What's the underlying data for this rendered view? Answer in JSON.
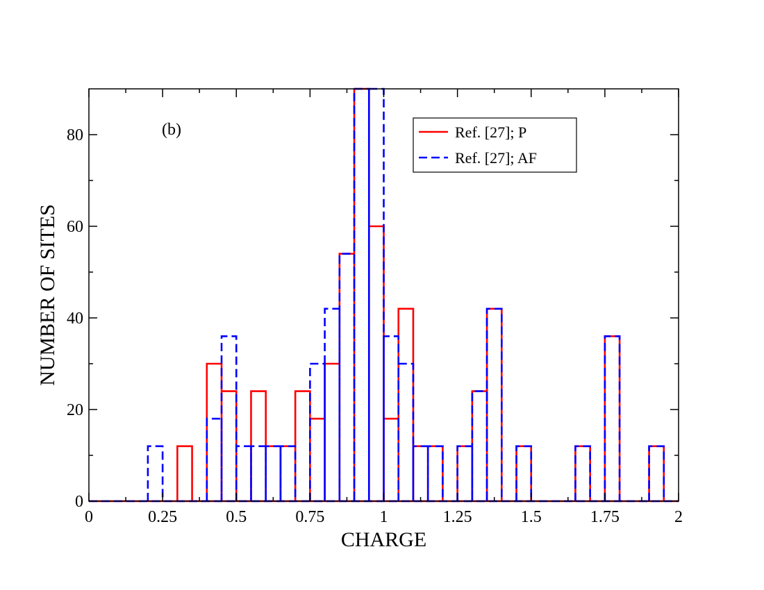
{
  "chart_data": {
    "type": "histogram",
    "title": "",
    "annotation": "(b)",
    "xlabel": "CHARGE",
    "ylabel": "NUMBER OF SITES",
    "xlim": [
      0,
      2
    ],
    "ylim": [
      0,
      90
    ],
    "bin_width": 0.05,
    "x_ticks": [
      0,
      0.25,
      0.5,
      0.75,
      1,
      1.25,
      1.5,
      1.75,
      2
    ],
    "x_tick_labels": [
      "0",
      "0.25",
      "0.5",
      "0.75",
      "1",
      "1.25",
      "1.5",
      "1.75",
      "2"
    ],
    "y_ticks": [
      0,
      20,
      40,
      60,
      80
    ],
    "y_tick_labels": [
      "0",
      "20",
      "40",
      "60",
      "80"
    ],
    "legend_position": "top-right",
    "series": [
      {
        "name": "Ref. [27]; P",
        "color": "#ff0000",
        "dash": "solid",
        "bin_starts": [
          0,
          0.05,
          0.1,
          0.15,
          0.2,
          0.25,
          0.3,
          0.35,
          0.4,
          0.45,
          0.5,
          0.55,
          0.6,
          0.65,
          0.7,
          0.75,
          0.8,
          0.85,
          0.9,
          0.95,
          1.0,
          1.05,
          1.1,
          1.15,
          1.2,
          1.25,
          1.3,
          1.35,
          1.4,
          1.45,
          1.5,
          1.55,
          1.6,
          1.65,
          1.7,
          1.75,
          1.8,
          1.85,
          1.9,
          1.95
        ],
        "values": [
          0,
          0,
          0,
          0,
          0,
          0,
          12,
          0,
          30,
          24,
          0,
          24,
          12,
          12,
          24,
          18,
          30,
          54,
          90,
          60,
          18,
          42,
          12,
          12,
          0,
          12,
          24,
          42,
          0,
          12,
          0,
          0,
          0,
          12,
          0,
          36,
          0,
          0,
          12,
          0
        ]
      },
      {
        "name": "Ref. [27]; AF",
        "color": "#0000ff",
        "dash": "dashed",
        "bin_starts": [
          0,
          0.05,
          0.1,
          0.15,
          0.2,
          0.25,
          0.3,
          0.35,
          0.4,
          0.45,
          0.5,
          0.55,
          0.6,
          0.65,
          0.7,
          0.75,
          0.8,
          0.85,
          0.9,
          0.95,
          1.0,
          1.05,
          1.1,
          1.15,
          1.2,
          1.25,
          1.3,
          1.35,
          1.4,
          1.45,
          1.5,
          1.55,
          1.6,
          1.65,
          1.7,
          1.75,
          1.8,
          1.85,
          1.9,
          1.95
        ],
        "values": [
          0,
          0,
          0,
          0,
          12,
          0,
          0,
          0,
          18,
          36,
          12,
          12,
          12,
          12,
          0,
          30,
          42,
          54,
          90,
          90,
          36,
          30,
          12,
          12,
          0,
          12,
          24,
          42,
          0,
          12,
          0,
          0,
          0,
          12,
          0,
          36,
          0,
          0,
          12,
          0
        ]
      }
    ]
  }
}
